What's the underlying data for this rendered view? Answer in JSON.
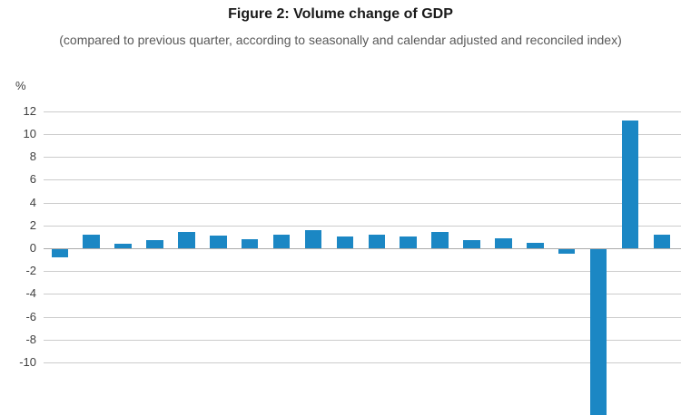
{
  "figure": {
    "title": "Figure 2: Volume change of GDP",
    "subtitle": "(compared to previous quarter, according to seasonally and calendar adjusted and reconciled index)",
    "y_unit_label": "%"
  },
  "colors": {
    "bar": "#1b87c4",
    "gridline": "#cccccc",
    "zero_line": "#ababab",
    "title_text": "#1a1a1a",
    "subtitle_text": "#595959",
    "tick_text": "#404040"
  },
  "chart_data": {
    "type": "bar",
    "title": "Figure 2: Volume change of GDP",
    "subtitle": "(compared to previous quarter, according to seasonally and calendar adjusted and reconciled index)",
    "ylabel": "%",
    "legend": "none",
    "grid": true,
    "num_bars": 20,
    "x_axis_labels_visible": false,
    "yticks": [
      12,
      10,
      8,
      6,
      4,
      2,
      0,
      -2,
      -4,
      -6,
      -8,
      -10
    ],
    "values": [
      -0.7,
      1.2,
      0.4,
      0.7,
      1.4,
      1.1,
      0.8,
      1.2,
      1.6,
      1.0,
      1.2,
      1.0,
      1.4,
      0.7,
      0.9,
      0.5,
      -0.4,
      -14.5,
      11.2,
      1.2
    ],
    "notes": "18th bar extends below the visible plot area (clipped at image bottom); x-axis category labels are cropped out of view"
  }
}
